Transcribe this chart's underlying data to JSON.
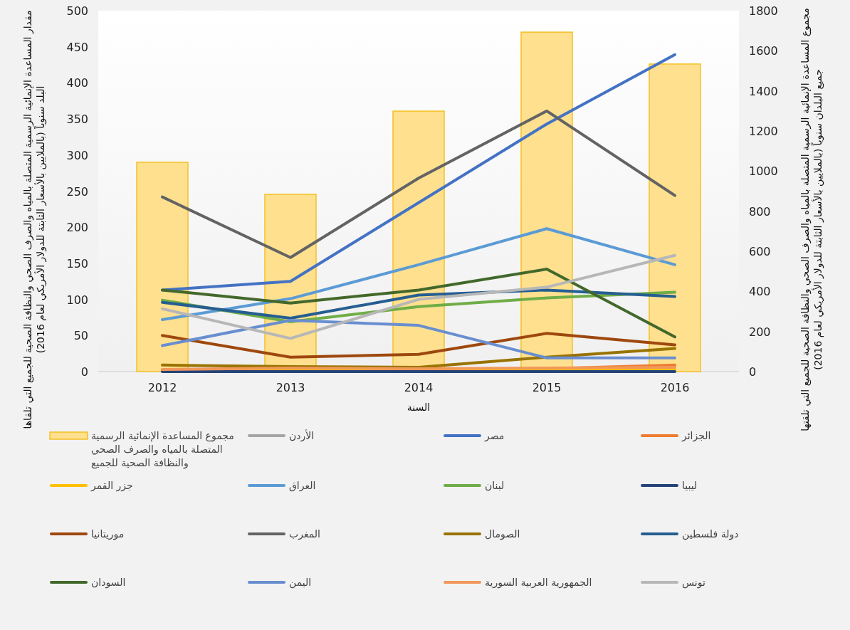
{
  "chart_data": {
    "type": "line",
    "xlabel": "السنة",
    "ylabel": "مقدار المساعدة الإنمائية الرسمية المتصلة بالمياه والصرف الصحي والنظافة الصحية للجميع التي تلقاها البلد سنوياً (بالملايين بالأسعار الثابتة للدولار الأمريكي لعام 2016)",
    "y2label": "مجموع المساعدة الإنمائية الرسمية المتصلة بالمياه والصرف الصحي والنظافة الصحية للجميع التي تلقتها جميع البلدان سنوياً (بالملايين بالأسعار الثابتة للدولار الأمريكي لعام 2016)",
    "categories": [
      "2012",
      "2013",
      "2014",
      "2015",
      "2016"
    ],
    "ylim": [
      0,
      500
    ],
    "yticks": [
      0,
      50,
      100,
      150,
      200,
      250,
      300,
      350,
      400,
      450,
      500
    ],
    "y2lim": [
      0,
      1800
    ],
    "y2ticks": [
      0,
      200,
      400,
      600,
      800,
      1000,
      1200,
      1400,
      1600,
      1800
    ],
    "legend": "bottom",
    "series": [
      {
        "name": "مجموع المساعدة الإنمائية الرسمية المتصلة بالمياه والصرف الصحي والنظافة الصحية للجميع",
        "type": "bar",
        "axis": "y2",
        "color": "#fee08f",
        "values": [
          1044,
          884,
          1299,
          1693,
          1534
        ]
      },
      {
        "name": "الأردن",
        "color": "#a5a5a5",
        "values": [
          null,
          null,
          null,
          null,
          null
        ]
      },
      {
        "name": "مصر",
        "color": "#4472c4",
        "values": [
          113,
          125,
          234,
          343,
          439
        ]
      },
      {
        "name": "الجزائر",
        "color": "#ed7d31",
        "values": [
          2,
          4,
          3,
          4,
          9
        ]
      },
      {
        "name": "جزر القمر",
        "color": "#ffc000",
        "values": [
          1,
          1,
          2,
          2,
          3
        ]
      },
      {
        "name": "العراق",
        "color": "#5b9bd5",
        "values": [
          72,
          101,
          148,
          198,
          148
        ]
      },
      {
        "name": "لبنان",
        "color": "#70ad47",
        "values": [
          99,
          69,
          90,
          102,
          110
        ]
      },
      {
        "name": "ليبيا",
        "color": "#264478",
        "values": [
          0,
          0,
          0,
          0,
          0
        ]
      },
      {
        "name": "موريتانيا",
        "color": "#9e480e",
        "values": [
          50,
          20,
          24,
          53,
          37
        ]
      },
      {
        "name": "المغرب",
        "color": "#636363",
        "values": [
          242,
          158,
          268,
          361,
          244
        ]
      },
      {
        "name": "الصومال",
        "color": "#997300",
        "values": [
          9,
          7,
          6,
          20,
          32
        ]
      },
      {
        "name": "دولة فلسطين",
        "color": "#255e91",
        "values": [
          96,
          74,
          106,
          113,
          104
        ]
      },
      {
        "name": "السودان",
        "color": "#43682b",
        "values": [
          113,
          95,
          113,
          142,
          48
        ]
      },
      {
        "name": "اليمن",
        "color": "#698ed0",
        "values": [
          36,
          71,
          64,
          19,
          19
        ]
      },
      {
        "name": "الجمهورية العربية السورية",
        "color": "#f1975a",
        "values": [
          3,
          5,
          4,
          5,
          6
        ]
      },
      {
        "name": "تونس",
        "color": "#b7b7b7",
        "values": [
          87,
          46,
          100,
          117,
          161
        ]
      }
    ]
  }
}
